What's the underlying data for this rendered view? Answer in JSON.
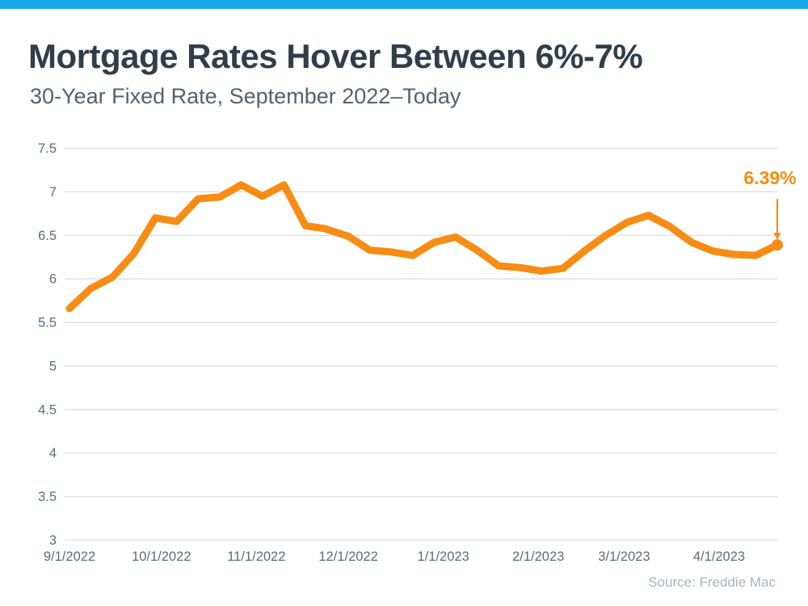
{
  "header": {
    "title": "Mortgage Rates Hover Between 6%-7%",
    "subtitle": "30-Year Fixed Rate, September 2022–Today"
  },
  "colors": {
    "accent_bar": "#18A9E9",
    "title": "#313E4A",
    "subtitle": "#51626F",
    "axis_label": "#5B6C7C",
    "gridline": "#D9DDE2",
    "line": "#F78C14",
    "annotation": "#F78C14",
    "source": "#A9B3BE"
  },
  "chart_data": {
    "type": "line",
    "title": "Mortgage Rates Hover Between 6%-7%",
    "subtitle": "30-Year Fixed Rate, September 2022–Today",
    "xlabel": "",
    "ylabel": "",
    "ylim": [
      3,
      7.5
    ],
    "yticks": [
      3,
      3.5,
      4,
      4.5,
      5,
      5.5,
      6,
      6.5,
      7,
      7.5
    ],
    "xticks": [
      "9/1/2022",
      "10/1/2022",
      "11/1/2022",
      "12/1/2022",
      "1/1/2023",
      "2/1/2023",
      "3/1/2023",
      "4/1/2023"
    ],
    "grid": "horizontal",
    "legend": "none",
    "series": [
      {
        "name": "30-Year Fixed Rate (%)",
        "color": "#F78C14",
        "x": [
          "9/1/2022",
          "9/8/2022",
          "9/15/2022",
          "9/22/2022",
          "9/29/2022",
          "10/6/2022",
          "10/13/2022",
          "10/20/2022",
          "10/27/2022",
          "11/3/2022",
          "11/10/2022",
          "11/17/2022",
          "11/23/2022",
          "12/1/2022",
          "12/8/2022",
          "12/15/2022",
          "12/22/2022",
          "12/29/2022",
          "1/5/2023",
          "1/12/2023",
          "1/19/2023",
          "1/26/2023",
          "2/2/2023",
          "2/9/2023",
          "2/16/2023",
          "2/23/2023",
          "3/2/2023",
          "3/9/2023",
          "3/16/2023",
          "3/23/2023",
          "3/30/2023",
          "4/6/2023",
          "4/13/2023",
          "4/20/2023"
        ],
        "values": [
          5.66,
          5.89,
          6.02,
          6.29,
          6.7,
          6.66,
          6.92,
          6.94,
          7.08,
          6.95,
          7.08,
          6.61,
          6.58,
          6.49,
          6.33,
          6.31,
          6.27,
          6.42,
          6.48,
          6.33,
          6.15,
          6.13,
          6.09,
          6.12,
          6.32,
          6.5,
          6.65,
          6.73,
          6.6,
          6.42,
          6.32,
          6.28,
          6.27,
          6.39
        ],
        "last_value_label": "6.39%"
      }
    ],
    "annotation": {
      "text": "6.39%",
      "color": "#F78C14"
    },
    "source": "Source: Freddie Mac"
  }
}
